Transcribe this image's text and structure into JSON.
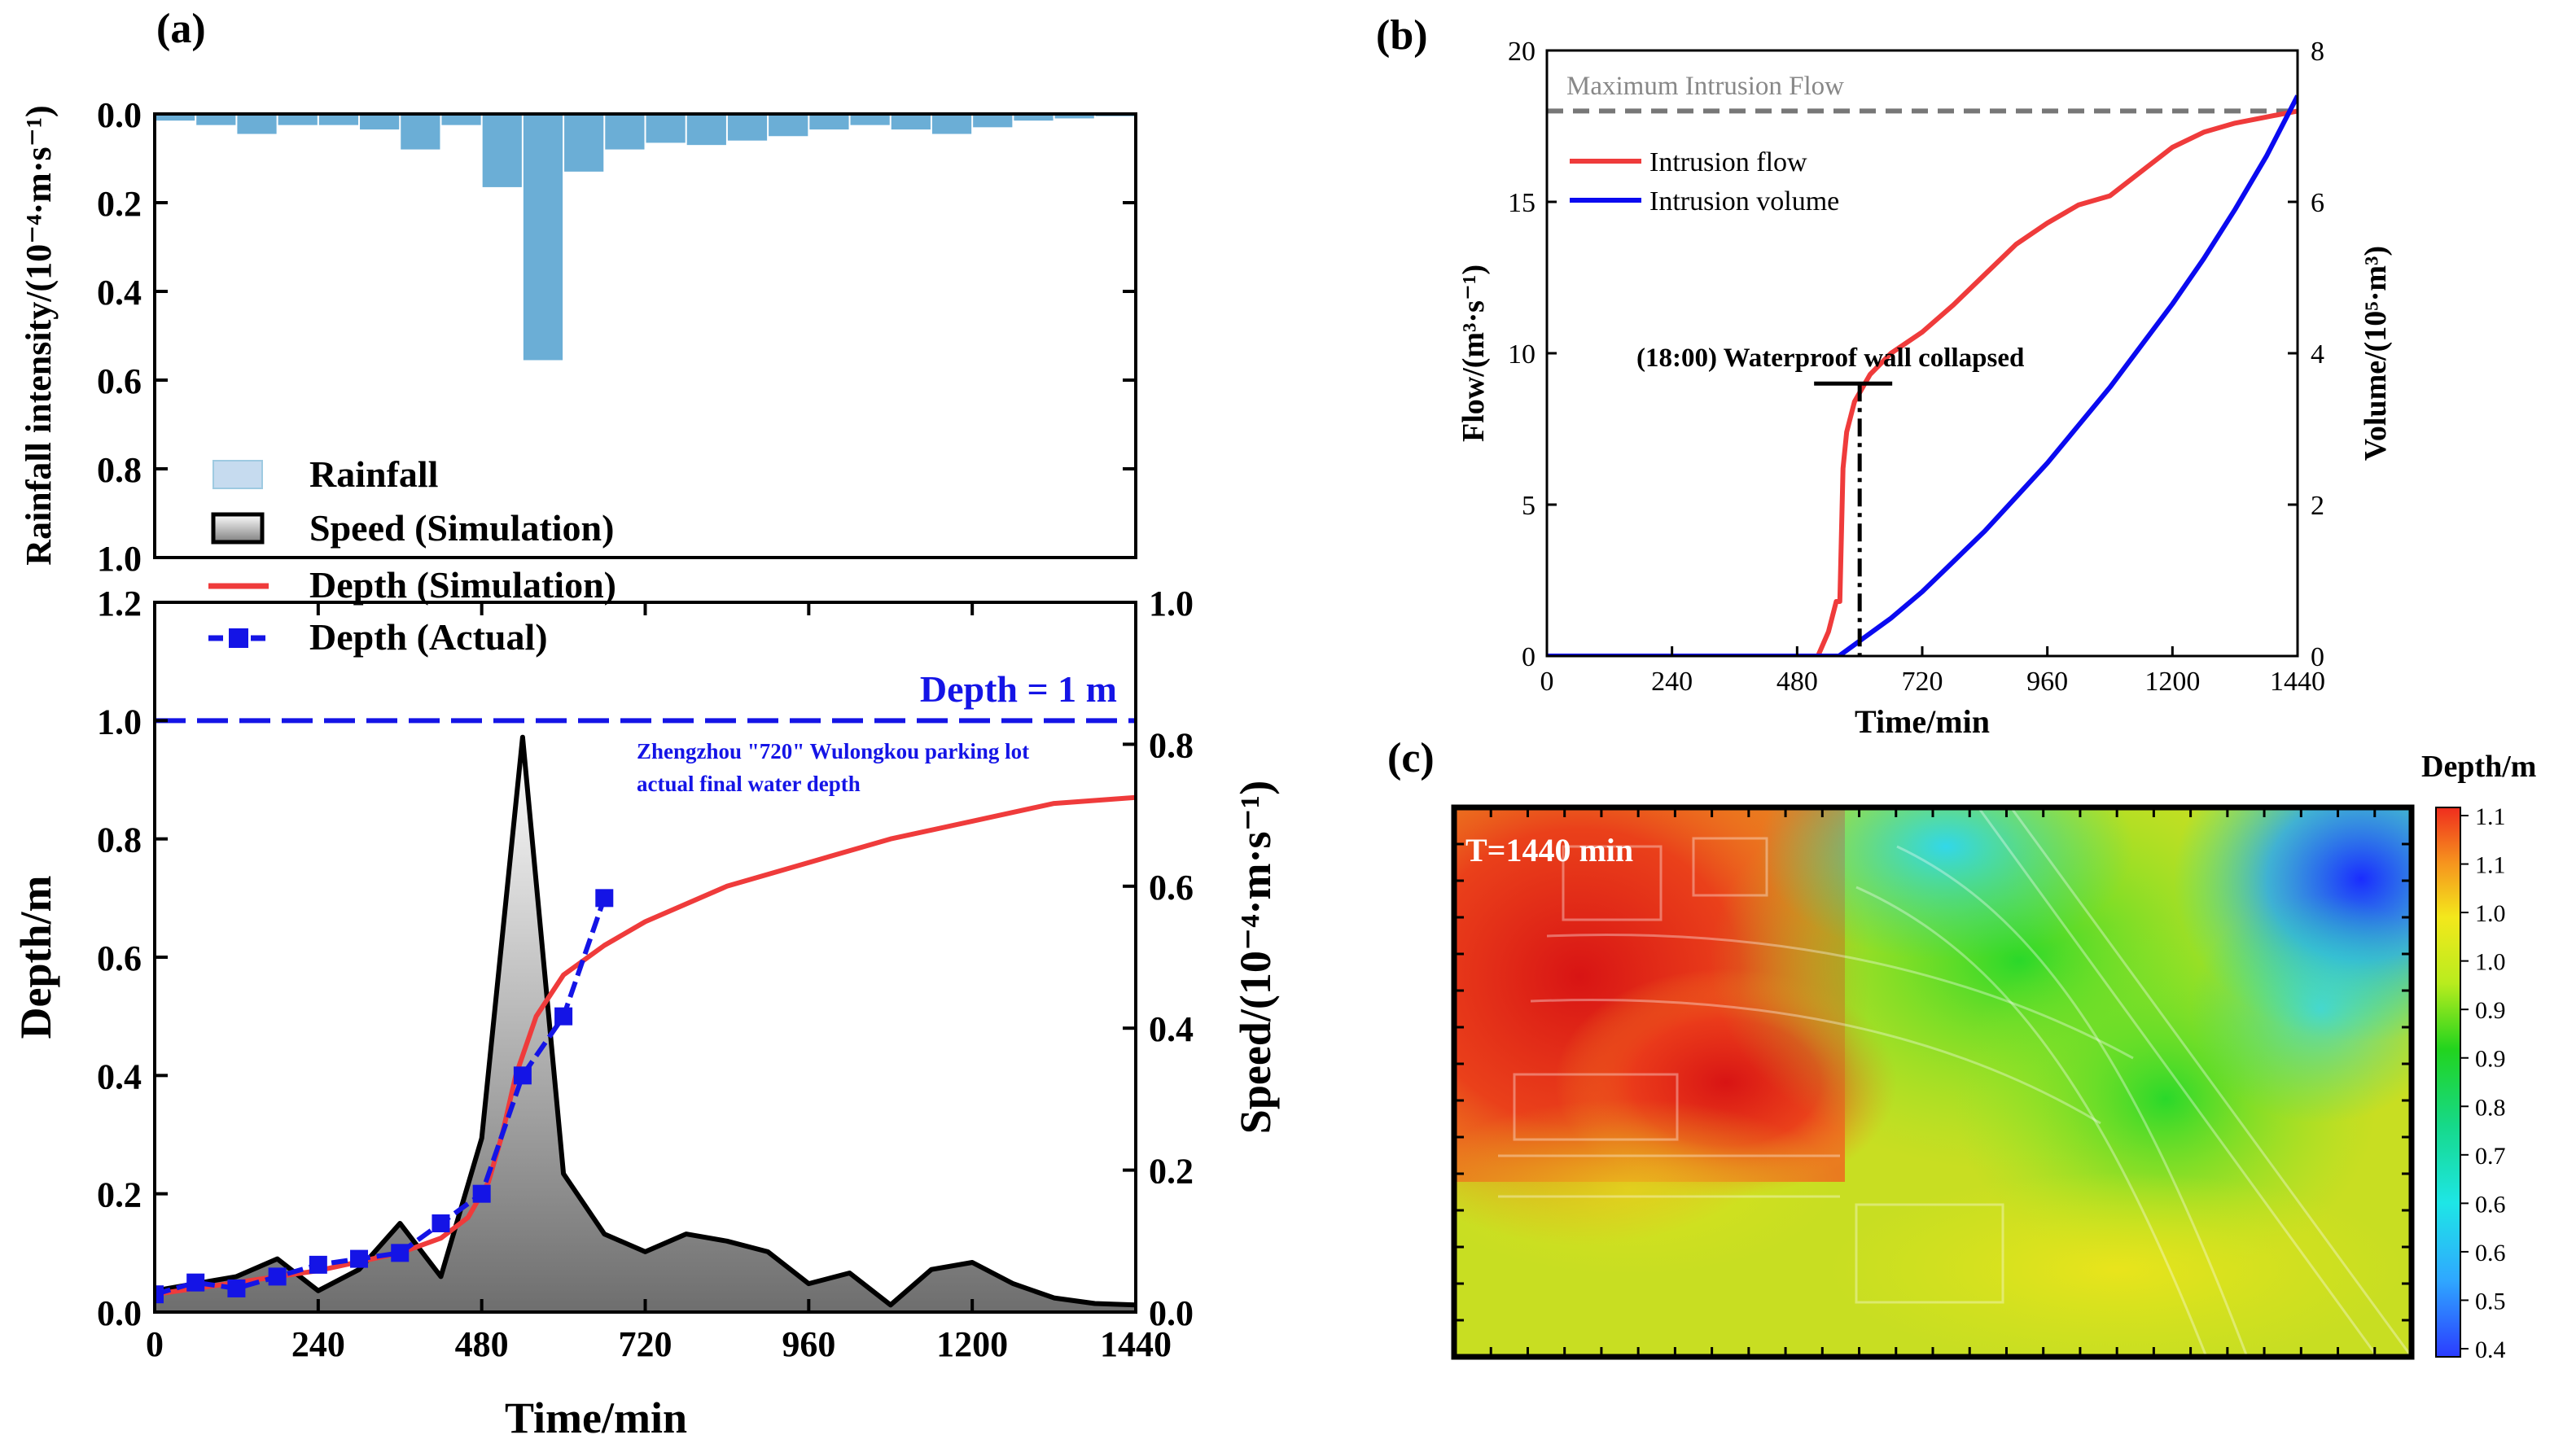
{
  "panel_labels": {
    "a": "(a)",
    "b": "(b)",
    "c": "(c)"
  },
  "colors": {
    "rain": "#6baed6",
    "rain_legend": "#c6dbef",
    "depth_sim": "#ef3b3b",
    "depth_actual": "#1414e6",
    "flow": "#ef3b3b",
    "volume": "#0a0af0",
    "max_flow_line": "#777777",
    "threshold": "#1414e6"
  },
  "chart_data": [
    {
      "id": "a_top",
      "type": "bar",
      "ylabel": "Rainfall intensity/(10⁻⁴·m·s⁻¹)",
      "yticks": [
        "0.0",
        "0.2",
        "0.4",
        "0.6",
        "0.8",
        "1.0"
      ],
      "ylim": [
        0,
        1.0
      ],
      "y_inverted": true,
      "xlim": [
        0,
        1440
      ],
      "bin_width": 60,
      "x": [
        0,
        60,
        120,
        180,
        240,
        300,
        360,
        420,
        480,
        540,
        600,
        660,
        720,
        780,
        840,
        900,
        960,
        1020,
        1080,
        1140,
        1200,
        1260,
        1320,
        1380
      ],
      "values": [
        0.015,
        0.025,
        0.045,
        0.025,
        0.025,
        0.035,
        0.08,
        0.025,
        0.165,
        0.555,
        0.13,
        0.08,
        0.065,
        0.07,
        0.06,
        0.05,
        0.035,
        0.025,
        0.035,
        0.045,
        0.03,
        0.015,
        0.01,
        0.005
      ]
    },
    {
      "id": "a_bottom",
      "type": "line",
      "xlabel": "Time/min",
      "ylabel": "Depth/m",
      "y2label": "Speed/(10⁻⁴·m·s⁻¹)",
      "xlim": [
        0,
        1440
      ],
      "ylim": [
        0,
        1.2
      ],
      "y2lim": [
        0,
        1.0
      ],
      "xticks": [
        "0",
        "240",
        "480",
        "720",
        "960",
        "1200",
        "1440"
      ],
      "yticks": [
        "0.0",
        "0.2",
        "0.4",
        "0.6",
        "0.8",
        "1.0",
        "1.2"
      ],
      "y2ticks": [
        "0.0",
        "0.2",
        "0.4",
        "0.6",
        "0.8",
        "1.0"
      ],
      "legend": [
        "Rainfall",
        "Speed (Simulation)",
        "Depth (Simulation)",
        "Depth (Actual)"
      ],
      "threshold": {
        "value": 1.0,
        "label": "Depth = 1 m"
      },
      "annotation": [
        "Zhengzhou \"720\" Wulongkou parking lot",
        "actual final water depth"
      ],
      "speed": {
        "x": [
          0,
          60,
          120,
          180,
          240,
          300,
          360,
          420,
          480,
          540,
          600,
          660,
          720,
          780,
          840,
          900,
          960,
          1020,
          1080,
          1140,
          1200,
          1260,
          1320,
          1380,
          1440
        ],
        "values": [
          0.03,
          0.04,
          0.05,
          0.075,
          0.03,
          0.06,
          0.125,
          0.05,
          0.245,
          0.81,
          0.195,
          0.11,
          0.085,
          0.11,
          0.1,
          0.085,
          0.04,
          0.055,
          0.01,
          0.06,
          0.07,
          0.04,
          0.02,
          0.012,
          0.01
        ]
      },
      "depth_sim": {
        "x": [
          0,
          60,
          120,
          180,
          240,
          300,
          360,
          420,
          460,
          490,
          510,
          530,
          560,
          600,
          660,
          720,
          840,
          960,
          1080,
          1200,
          1320,
          1440
        ],
        "values": [
          0.03,
          0.04,
          0.05,
          0.06,
          0.07,
          0.085,
          0.1,
          0.125,
          0.16,
          0.22,
          0.3,
          0.4,
          0.5,
          0.57,
          0.62,
          0.66,
          0.72,
          0.76,
          0.8,
          0.83,
          0.86,
          0.87
        ]
      },
      "depth_actual": {
        "x": [
          0,
          60,
          120,
          180,
          240,
          300,
          360,
          420,
          480,
          540,
          600,
          660
        ],
        "values": [
          0.03,
          0.05,
          0.04,
          0.06,
          0.08,
          0.09,
          0.1,
          0.15,
          0.2,
          0.4,
          0.5,
          0.7
        ]
      }
    },
    {
      "id": "b",
      "type": "line",
      "xlabel": "Time/min",
      "ylabel": "Flow/(m³·s⁻¹)",
      "y2label": "Volume/(10⁵·m³)",
      "xlim": [
        0,
        1440
      ],
      "ylim": [
        0,
        20
      ],
      "y2lim": [
        0,
        8
      ],
      "xticks": [
        "0",
        "240",
        "480",
        "720",
        "960",
        "1200",
        "1440"
      ],
      "yticks": [
        "0",
        "5",
        "10",
        "15",
        "20"
      ],
      "y2ticks": [
        "0",
        "2",
        "4",
        "6",
        "8"
      ],
      "legend": [
        "Intrusion flow",
        "Intrusion volume"
      ],
      "max_flow": {
        "value": 18,
        "label": "Maximum Intrusion Flow"
      },
      "collapse": {
        "x": 600,
        "label": "(18:00) Waterproof wall collapsed"
      },
      "flow": {
        "x": [
          0,
          520,
          540,
          555,
          562,
          568,
          575,
          590,
          620,
          660,
          720,
          780,
          840,
          900,
          960,
          1020,
          1080,
          1140,
          1200,
          1260,
          1320,
          1380,
          1440
        ],
        "values": [
          0,
          0,
          0.8,
          1.8,
          1.8,
          6.2,
          7.4,
          8.4,
          9.3,
          10,
          10.7,
          11.6,
          12.6,
          13.6,
          14.3,
          14.9,
          15.2,
          16,
          16.8,
          17.3,
          17.6,
          17.8,
          18.0
        ]
      },
      "volume": {
        "x": [
          0,
          560,
          600,
          660,
          720,
          780,
          840,
          900,
          960,
          1020,
          1080,
          1140,
          1200,
          1260,
          1320,
          1380,
          1440
        ],
        "values": [
          0,
          0,
          0.2,
          0.5,
          0.85,
          1.25,
          1.65,
          2.1,
          2.55,
          3.05,
          3.55,
          4.1,
          4.65,
          5.25,
          5.9,
          6.6,
          7.4
        ]
      }
    },
    {
      "id": "c",
      "type": "heatmap",
      "title": "T=1440 min",
      "colorbar_label": "Depth/m",
      "colorbar_ticks": [
        "1.1",
        "1.1",
        "1.0",
        "1.0",
        "0.9",
        "0.9",
        "0.8",
        "0.7",
        "0.6",
        "0.6",
        "0.5",
        "0.4"
      ],
      "clim": [
        0.4,
        1.1
      ]
    }
  ]
}
